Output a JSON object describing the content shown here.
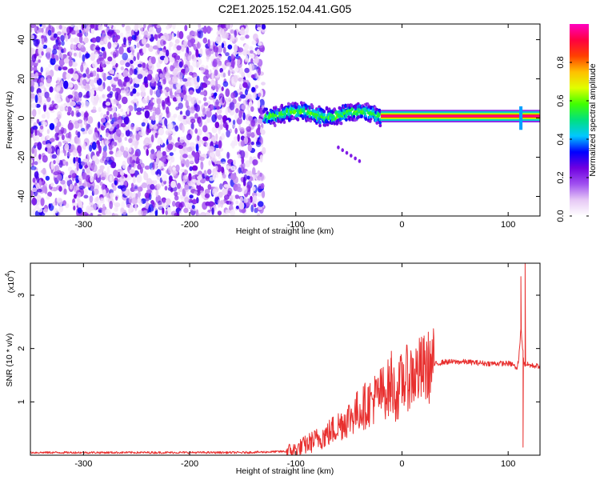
{
  "figure_title": "C2E1.2025.152.04.41.G05",
  "chart_data": [
    {
      "type": "heatmap",
      "xlabel": "Height of straight line (km)",
      "ylabel": "Frequency (Hz)",
      "xlim": [
        -350,
        130
      ],
      "ylim": [
        -50,
        48
      ],
      "xticks": [
        -300,
        -200,
        -100,
        0,
        100
      ],
      "xtick_labels": [
        "-300",
        "-200",
        "-100",
        "0",
        "100"
      ],
      "yticks": [
        -40,
        -20,
        0,
        20,
        40
      ],
      "ytick_labels": [
        "-40",
        "-20",
        "0",
        "20",
        "40"
      ],
      "colorbar": {
        "label": "Normalized spectral amplitude",
        "range": [
          0,
          1
        ],
        "ticks": [
          0.0,
          0.2,
          0.4,
          0.6,
          0.8
        ],
        "tick_labels": [
          "0.0",
          "0.2",
          "0.4",
          "0.6",
          "0.8"
        ],
        "colormap": [
          "#ffffff",
          "#e6c8f5",
          "#a050f0",
          "#7000e0",
          "#0000ff",
          "#00c8ff",
          "#00e080",
          "#40ff00",
          "#e0ff00",
          "#ffc000",
          "#ff4000",
          "#ff0040",
          "#ff00c0"
        ]
      },
      "regions": [
        {
          "name": "noise",
          "x_range": [
            -350,
            -130
          ],
          "freq_range": [
            -50,
            48
          ],
          "amplitude": "0.05-0.3"
        },
        {
          "name": "transition",
          "x_range": [
            -130,
            -20
          ],
          "freq_center": 2,
          "freq_halfwidth": 4,
          "amplitude": "0.3-0.6"
        },
        {
          "name": "stable-signal",
          "x_range": [
            -20,
            130
          ],
          "freq_center": 1,
          "freq_halfwidth": 2,
          "amplitude": "0.8-1.0"
        }
      ],
      "features": [
        {
          "name": "descending-streak",
          "x_range": [
            -60,
            -40
          ],
          "freq_range": [
            -22,
            -15
          ]
        },
        {
          "name": "tail-spike",
          "x": 112,
          "freq_range": [
            -6,
            6
          ]
        }
      ],
      "grid": false
    },
    {
      "type": "line",
      "ylabel": "SNR (10 * v/v)",
      "yunit_label": "(x10",
      "yunit_exponent": "4",
      "xlabel": "Height of straight line (km)",
      "xlim": [
        -350,
        130
      ],
      "ylim": [
        0,
        3.6
      ],
      "xticks": [
        -300,
        -200,
        -100,
        0,
        100
      ],
      "xtick_labels": [
        "-300",
        "-200",
        "-100",
        "0",
        "100"
      ],
      "yticks": [
        1,
        2,
        3
      ],
      "ytick_labels": [
        "1",
        "2",
        "3"
      ],
      "color": "#e8302f",
      "grid": false,
      "series": [
        {
          "x": [
            -350,
            -300,
            -250,
            -200,
            -150,
            -110,
            -100,
            -90,
            -80,
            -70,
            -60,
            -50,
            -40,
            -30,
            -20,
            -10,
            -5,
            0,
            10,
            20,
            30,
            40,
            60,
            80,
            100,
            105,
            108,
            110,
            112,
            115,
            118,
            122,
            130
          ],
          "values": [
            0.05,
            0.05,
            0.05,
            0.05,
            0.05,
            0.07,
            0.1,
            0.2,
            0.3,
            0.4,
            0.55,
            0.7,
            0.85,
            1.0,
            1.15,
            1.3,
            1.1,
            1.4,
            1.5,
            1.6,
            1.7,
            1.75,
            1.75,
            1.72,
            1.72,
            1.7,
            1.6,
            1.8,
            2.4,
            1.7,
            1.7,
            1.68,
            1.67
          ],
          "spikes": [
            {
              "x": -42,
              "y": 0.95
            },
            {
              "x": -30,
              "y": 1.1
            },
            {
              "x": -10,
              "y": 1.95
            },
            {
              "x": -3,
              "y": 1.5
            },
            {
              "x": 112,
              "y": 3.35
            },
            {
              "x": 114,
              "y": 0.15
            },
            {
              "x": 116,
              "y": 3.6
            }
          ]
        }
      ]
    }
  ]
}
